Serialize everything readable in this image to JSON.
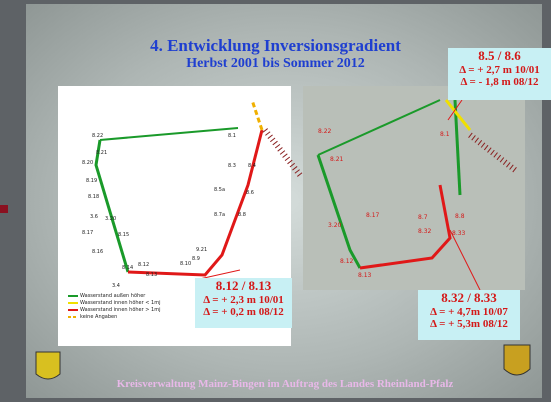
{
  "slide": {
    "title": "4. Entwicklung Inversionsgradient",
    "subtitle": "Herbst 2001 bis Sommer 2012",
    "callouts": [
      {
        "heading": "8.5 / 8.6",
        "lines": [
          "Δ = + 2,7 m  10/01",
          "Δ = - 1,8 m  08/12"
        ]
      },
      {
        "heading": "8.12 / 8.13",
        "lines": [
          "Δ = + 2,3 m  10/01",
          "Δ = + 0,2 m  08/12"
        ]
      },
      {
        "heading": "8.32 / 8.33",
        "lines": [
          "Δ = + 4,7m  10/07",
          "Δ = + 5,3m  08/12"
        ]
      }
    ],
    "legend": [
      "Wasserstand außen höher",
      "Wasserstand innen höher < 1mj",
      "Wasserstand innen höher > 1mj",
      "keine Angaben"
    ],
    "left_map_labels": [
      "8.22",
      "8.21",
      "8.20",
      "8.19",
      "8.18",
      "3.6",
      "3.20",
      "8.17",
      "8.15",
      "8.16",
      "8.14",
      "8.12",
      "8.13",
      "3.4",
      "8.10",
      "8.9",
      "9.21",
      "8.1",
      "8.3",
      "8.4",
      "8.5a",
      "8.6",
      "8.7a",
      "8.8"
    ],
    "right_map_labels": [
      "8.22",
      "8.21",
      "8.17",
      "3.20",
      "8.12",
      "8.13",
      "8.1",
      "8.7",
      "8.32",
      "8.33",
      "8.8"
    ],
    "footer": "Kreisverwaltung Mainz-Bingen im Auftrag des Landes Rheinland-Pfalz"
  }
}
